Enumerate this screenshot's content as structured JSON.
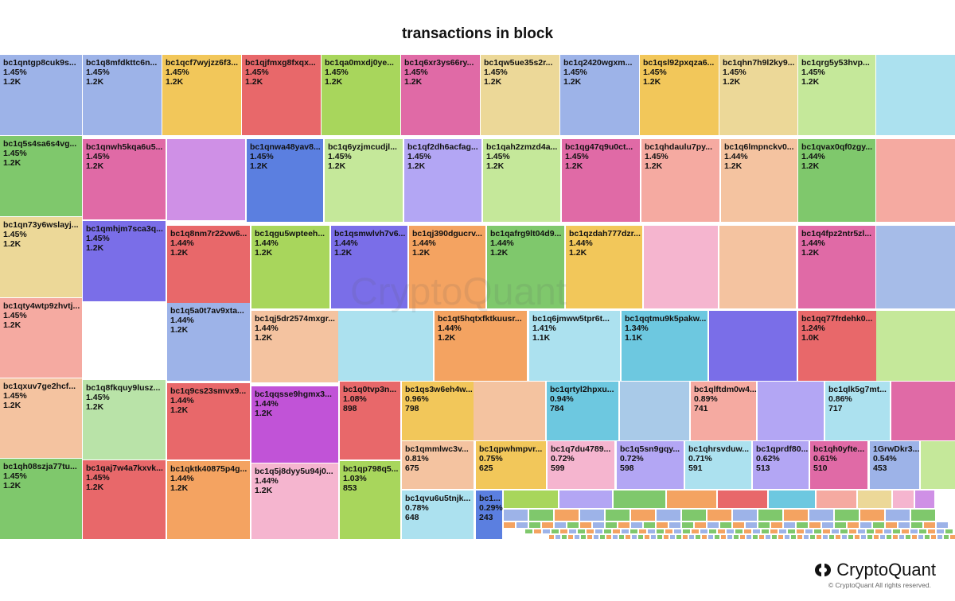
{
  "chart_data": {
    "type": "treemap",
    "title": "transactions in block",
    "colors": [
      "#9db3e8",
      "#a9cae8",
      "#f2c75a",
      "#e8686a",
      "#a8d65c",
      "#e06aa6",
      "#ecd898",
      "#7fc86c",
      "#f5aaa1",
      "#f4c3a0",
      "#cf90e6",
      "#5b7fe0",
      "#c5e89a",
      "#b3a6f4",
      "#f4a361",
      "#7a6ee8",
      "#f5b5cf",
      "#ace1ef",
      "#6dc8e0",
      "#c153d7",
      "#efe3a0"
    ],
    "nodes": [
      {
        "label": "bc1qntgp8cuk9s...",
        "pct": "1.45%",
        "value": "1.2K",
        "color": "#9db3e8"
      },
      {
        "label": "bc1q8mfdkttc6n...",
        "pct": "1.45%",
        "value": "1.2K",
        "color": "#9db3e8"
      },
      {
        "label": "bc1qcf7wyjzz6f3...",
        "pct": "1.45%",
        "value": "1.2K",
        "color": "#f2c75a"
      },
      {
        "label": "bc1qjfmxg8fxqx...",
        "pct": "1.45%",
        "value": "1.2K",
        "color": "#e8686a"
      },
      {
        "label": "bc1qa0mxdj0ye...",
        "pct": "1.45%",
        "value": "1.2K",
        "color": "#a8d65c"
      },
      {
        "label": "bc1q6xr3ys66ry...",
        "pct": "1.45%",
        "value": "1.2K",
        "color": "#e06aa6"
      },
      {
        "label": "bc1qw5ue35s2r...",
        "pct": "1.45%",
        "value": "1.2K",
        "color": "#ecd898"
      },
      {
        "label": "bc1q2420wgxm...",
        "pct": "1.45%",
        "value": "1.2K",
        "color": "#9db3e8"
      },
      {
        "label": "bc1qsl92pxqza6...",
        "pct": "1.45%",
        "value": "1.2K",
        "color": "#f2c75a"
      },
      {
        "label": "bc1qhn7h9l2ky9...",
        "pct": "1.45%",
        "value": "1.2K",
        "color": "#ecd898"
      },
      {
        "label": "bc1qrg5y53hvp...",
        "pct": "1.45%",
        "value": "1.2K",
        "color": "#c5e89a"
      },
      {
        "label": "bc1q5s4sa6s4vg...",
        "pct": "1.45%",
        "value": "1.2K",
        "color": "#7fc86c"
      },
      {
        "label": "bc1qnwh5kqa6u5...",
        "pct": "1.45%",
        "value": "1.2K",
        "color": "#e06aa6"
      },
      {
        "label": "bc1qnwa48yav8...",
        "pct": "1.45%",
        "value": "1.2K",
        "color": "#5b7fe0"
      },
      {
        "label": "bc1q6yzjmcudjl...",
        "pct": "1.45%",
        "value": "1.2K",
        "color": "#c5e89a"
      },
      {
        "label": "bc1qf2dh6acfag...",
        "pct": "1.45%",
        "value": "1.2K",
        "color": "#b3a6f4"
      },
      {
        "label": "bc1qah2zmzd4a...",
        "pct": "1.45%",
        "value": "1.2K",
        "color": "#c5e89a"
      },
      {
        "label": "bc1qg47q9u0ct...",
        "pct": "1.45%",
        "value": "1.2K",
        "color": "#e06aa6"
      },
      {
        "label": "bc1qhdaulu7py...",
        "pct": "1.45%",
        "value": "1.2K",
        "color": "#f5aaa1"
      },
      {
        "label": "bc1q6lmpnckv0...",
        "pct": "1.44%",
        "value": "1.2K",
        "color": "#f4c3a0"
      },
      {
        "label": "bc1qvax0qf0zgy...",
        "pct": "1.44%",
        "value": "1.2K",
        "color": "#7fc86c"
      },
      {
        "label": "bc1qn73y6wslayj...",
        "pct": "1.45%",
        "value": "1.2K",
        "color": "#ecd898"
      },
      {
        "label": "bc1qmhjm7sca3q...",
        "pct": "1.45%",
        "value": "1.2K",
        "color": "#7a6ee8"
      },
      {
        "label": "bc1q8nm7r22vw6...",
        "pct": "1.44%",
        "value": "1.2K",
        "color": "#e8686a"
      },
      {
        "label": "bc1qgu5wpteeh...",
        "pct": "1.44%",
        "value": "1.2K",
        "color": "#a8d65c"
      },
      {
        "label": "bc1qsmwlvh7v6...",
        "pct": "1.44%",
        "value": "1.2K",
        "color": "#7a6ee8"
      },
      {
        "label": "bc1qj390dgucrv...",
        "pct": "1.44%",
        "value": "1.2K",
        "color": "#f4a361"
      },
      {
        "label": "bc1qafrg9lt04d9...",
        "pct": "1.44%",
        "value": "1.2K",
        "color": "#7fc86c"
      },
      {
        "label": "bc1qzdah777dzr...",
        "pct": "1.44%",
        "value": "1.2K",
        "color": "#f2c75a"
      },
      {
        "label": "bc1q4fpz2ntr5zl...",
        "pct": "1.44%",
        "value": "1.2K",
        "color": "#e06aa6"
      },
      {
        "label": "bc1qty4wtp9zhvtj...",
        "pct": "1.45%",
        "value": "1.2K",
        "color": "#f5aaa1"
      },
      {
        "label": "bc1q5a0t7av9xta...",
        "pct": "1.44%",
        "value": "1.2K",
        "color": "#9db3e8"
      },
      {
        "label": "bc1qj5dr2574mxgr...",
        "pct": "1.44%",
        "value": "1.2K",
        "color": "#f4c3a0"
      },
      {
        "label": "bc1qt5hqtxfktkuusr...",
        "pct": "1.44%",
        "value": "1.2K",
        "color": "#f4a361"
      },
      {
        "label": "bc1q6jmww5tpr6t...",
        "pct": "1.41%",
        "value": "1.1K",
        "color": "#ace1ef"
      },
      {
        "label": "bc1qqtmu9k5pakw...",
        "pct": "1.34%",
        "value": "1.1K",
        "color": "#6dc8e0"
      },
      {
        "label": "bc1qq77frdehk0...",
        "pct": "1.24%",
        "value": "1.0K",
        "color": "#e8686a"
      },
      {
        "label": "bc1qxuv7ge2hcf...",
        "pct": "1.45%",
        "value": "1.2K",
        "color": "#f4c3a0"
      },
      {
        "label": "bc1q8fkquy9lusz...",
        "pct": "1.45%",
        "value": "1.2K",
        "color": "#b9e3a8"
      },
      {
        "label": "bc1q9cs23smvx9...",
        "pct": "1.44%",
        "value": "1.2K",
        "color": "#e8686a"
      },
      {
        "label": "bc1qqsse9hgmx3...",
        "pct": "1.44%",
        "value": "1.2K",
        "color": "#c153d7"
      },
      {
        "label": "bc1q0tvp3n...",
        "pct": "1.08%",
        "value": "898",
        "color": "#e8686a"
      },
      {
        "label": "bc1qs3w6eh4w...",
        "pct": "0.96%",
        "value": "798",
        "color": "#f2c75a"
      },
      {
        "label": "bc1qrtyl2hpxu...",
        "pct": "0.94%",
        "value": "784",
        "color": "#6dc8e0"
      },
      {
        "label": "bc1qlftdm0w4...",
        "pct": "0.89%",
        "value": "741",
        "color": "#f5aaa1"
      },
      {
        "label": "bc1qlk5g7mt...",
        "pct": "0.86%",
        "value": "717",
        "color": "#ace1ef"
      },
      {
        "label": "bc1qh08szja77tu...",
        "pct": "1.45%",
        "value": "1.2K",
        "color": "#7fc86c"
      },
      {
        "label": "bc1qaj7w4a7kxvk...",
        "pct": "1.45%",
        "value": "1.2K",
        "color": "#e8686a"
      },
      {
        "label": "bc1qktk40875p4g...",
        "pct": "1.44%",
        "value": "1.2K",
        "color": "#f4a361"
      },
      {
        "label": "bc1q5j8dyy5u94j0...",
        "pct": "1.44%",
        "value": "1.2K",
        "color": "#f5b5cf"
      },
      {
        "label": "bc1qp798q5...",
        "pct": "1.03%",
        "value": "853",
        "color": "#a8d65c"
      },
      {
        "label": "bc1qmmlwc3v...",
        "pct": "0.81%",
        "value": "675",
        "color": "#f4c3a0"
      },
      {
        "label": "bc1qpwhmpvr...",
        "pct": "0.75%",
        "value": "625",
        "color": "#f2c75a"
      },
      {
        "label": "bc1q7du4789...",
        "pct": "0.72%",
        "value": "599",
        "color": "#f5b5cf"
      },
      {
        "label": "bc1q5sn9gqy...",
        "pct": "0.72%",
        "value": "598",
        "color": "#b3a6f4"
      },
      {
        "label": "bc1qhrsvduw...",
        "pct": "0.71%",
        "value": "591",
        "color": "#ace1ef"
      },
      {
        "label": "bc1qprdf80...",
        "pct": "0.62%",
        "value": "513",
        "color": "#b3a6f4"
      },
      {
        "label": "bc1qh0yfte...",
        "pct": "0.61%",
        "value": "510",
        "color": "#e06aa6"
      },
      {
        "label": "1GrwDkr3...",
        "pct": "0.54%",
        "value": "453",
        "color": "#9db3e8"
      },
      {
        "label": "bc1qvu6u5tnjk...",
        "pct": "0.78%",
        "value": "648",
        "color": "#ace1ef"
      },
      {
        "label": "bc1...",
        "pct": "0.29%",
        "value": "243",
        "color": "#5b7fe0"
      },
      {
        "label": "",
        "color": "#ace1ef"
      },
      {
        "label": "",
        "color": "#cf90e6"
      },
      {
        "label": "",
        "color": "#f5aaa1"
      },
      {
        "label": "",
        "color": "#a6bce8"
      },
      {
        "label": "",
        "color": "#f5b5cf"
      },
      {
        "label": "",
        "color": "#f4c3a0"
      },
      {
        "label": "",
        "color": "#c5e89a"
      },
      {
        "label": "",
        "color": "#7a6ee8"
      },
      {
        "label": "",
        "color": "#ace1ef"
      },
      {
        "label": "",
        "color": "#f4c3a0"
      },
      {
        "label": "",
        "color": "#a9cae8"
      },
      {
        "label": "",
        "color": "#b3a6f4"
      },
      {
        "label": "",
        "color": "#e06aa6"
      },
      {
        "label": "",
        "color": "#c5e89a"
      },
      {
        "label": "",
        "color": "#a8d65c"
      },
      {
        "label": "",
        "color": "#b3a6f4"
      },
      {
        "label": "",
        "color": "#7fc86c"
      },
      {
        "label": "",
        "color": "#f4a361"
      },
      {
        "label": "",
        "color": "#e8686a"
      },
      {
        "label": "",
        "color": "#6dc8e0"
      },
      {
        "label": "",
        "color": "#f5aaa1"
      },
      {
        "label": "",
        "color": "#ecd898"
      },
      {
        "label": "",
        "color": "#f5b5cf"
      },
      {
        "label": "",
        "color": "#cf90e6"
      }
    ]
  },
  "watermark": "CryptoQuant",
  "brand": {
    "name": "CryptoQuant",
    "copyright": "© CryptoQuant All rights reserved."
  }
}
